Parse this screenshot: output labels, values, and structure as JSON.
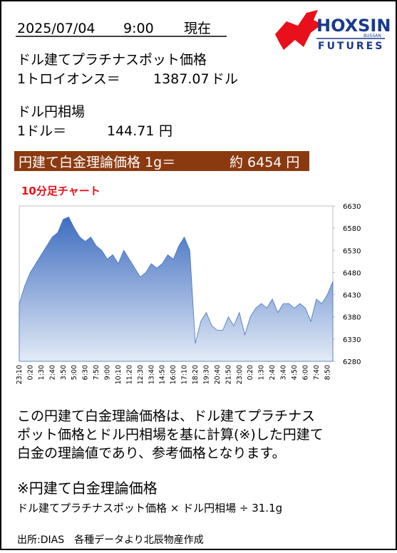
{
  "header": {
    "date": "2025/07/04",
    "time": "9:00",
    "status": "現在"
  },
  "logo": {
    "name": "HOXSIN",
    "small": "BUSSAN",
    "sub": "FUTURES"
  },
  "spot": {
    "title": "ドル建てプラチナスポット価格",
    "label": "1トロイオンス＝",
    "value": "1387.07",
    "unit": "ドル"
  },
  "fx": {
    "title": "ドル円相場",
    "label": "1ドル＝",
    "value": "144.71",
    "unit": "円"
  },
  "theory": {
    "label": "円建て白金理論価格 1g＝",
    "value": "約 6454 円"
  },
  "chart_data": {
    "type": "area",
    "title": "10分足チャート",
    "color": "#4472c4",
    "categories": [
      "23:10",
      null,
      "0:20",
      null,
      "1:30",
      null,
      "2:40",
      null,
      "3:50",
      null,
      "5:00",
      null,
      "6:30",
      null,
      "7:50",
      null,
      "9:00",
      null,
      "10:10",
      null,
      "11:20",
      null,
      "12:30",
      null,
      "13:40",
      null,
      "14:50",
      null,
      "16:00",
      null,
      "17:10",
      null,
      "18:20",
      null,
      "19:30",
      null,
      "20:40",
      null,
      "21:50",
      null,
      "23:00",
      null,
      "0:20",
      null,
      "1:30",
      null,
      "2:40",
      null,
      "3:40",
      null,
      "4:50",
      null,
      "6:00",
      null,
      "7:40",
      null,
      "8:50",
      null
    ],
    "values": [
      6410,
      6450,
      6480,
      6500,
      6520,
      6540,
      6560,
      6570,
      6600,
      6605,
      6580,
      6560,
      6550,
      6560,
      6540,
      6530,
      6510,
      6520,
      6500,
      6530,
      6510,
      6490,
      6470,
      6480,
      6500,
      6490,
      6500,
      6520,
      6510,
      6540,
      6560,
      6530,
      6320,
      6370,
      6390,
      6360,
      6350,
      6350,
      6380,
      6360,
      6390,
      6340,
      6380,
      6400,
      6410,
      6400,
      6420,
      6390,
      6410,
      6410,
      6400,
      6410,
      6400,
      6370,
      6420,
      6410,
      6430,
      6460
    ],
    "ylim": [
      6280,
      6630
    ],
    "yticks": [
      6280,
      6330,
      6380,
      6430,
      6480,
      6530,
      6580,
      6630
    ]
  },
  "description": [
    "この円建て白金理論価格は、ドル建てプラチナス",
    "ポット価格とドル円相場を基に計算(※)した円建て",
    "白金の理論値であり、参考価格となります。"
  ],
  "formula": {
    "title": "※円建て白金理論価格",
    "text": "ドル建てプラチナスポット価格 × ドル円相場 ÷ 31.1g"
  },
  "source": "出所:DIAS　各種データより北辰物産作成"
}
